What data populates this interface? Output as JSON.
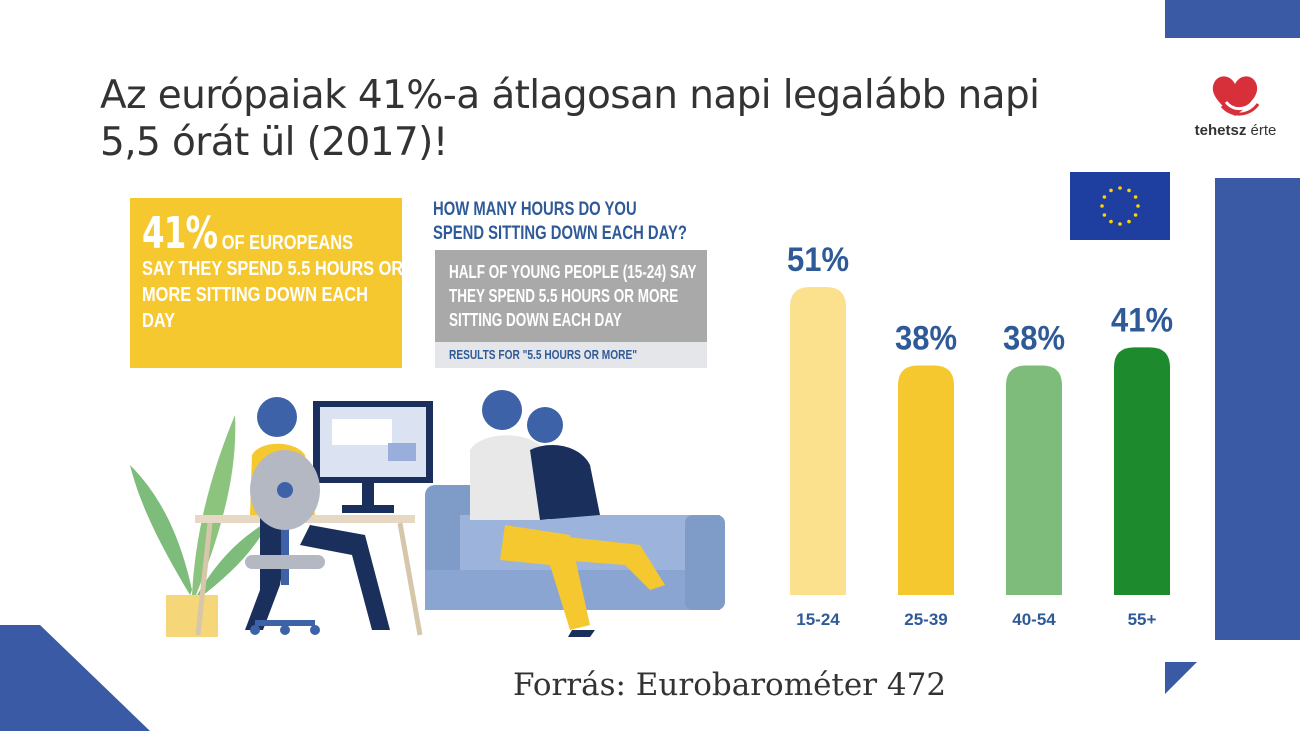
{
  "slide": {
    "title": "Az európaiak 41%-a átlagosan napi legalább napi 5,5 órát ül (2017)!",
    "source": "Forrás: Eurobarométer 472",
    "logo": {
      "text_bold": "tehetsz",
      "text_regular": " érte",
      "icon": "heart-logo-icon"
    },
    "colors": {
      "accent_blue": "#3a5aa6",
      "eu_blue": "#1e3fa0",
      "yellow": "#f5c830"
    }
  },
  "infographic": {
    "headline_pct": "41%",
    "headline_suffix": "OF EUROPEANS",
    "headline_rest": "SAY THEY SPEND 5.5 HOURS OR MORE SITTING DOWN EACH DAY",
    "question": "HOW MANY HOURS DO YOU SPEND SITTING DOWN EACH DAY?",
    "young_note": "HALF OF YOUNG PEOPLE (15-24) SAY THEY SPEND 5.5 HOURS OR MORE SITTING DOWN EACH DAY",
    "results_note": "RESULTS FOR \"5.5 HOURS OR MORE\""
  },
  "chart_data": {
    "type": "bar",
    "categories": [
      "15-24",
      "25-39",
      "40-54",
      "55+"
    ],
    "values": [
      51,
      38,
      38,
      41
    ],
    "value_labels": [
      "51%",
      "38%",
      "38%",
      "41%"
    ],
    "colors": [
      "#fbe08e",
      "#f5c830",
      "#7dbc7a",
      "#1d8a2e"
    ],
    "label_color": "#2f5a98",
    "ylim": [
      0,
      51
    ],
    "grid": false,
    "title": "",
    "xlabel": "",
    "ylabel": ""
  }
}
